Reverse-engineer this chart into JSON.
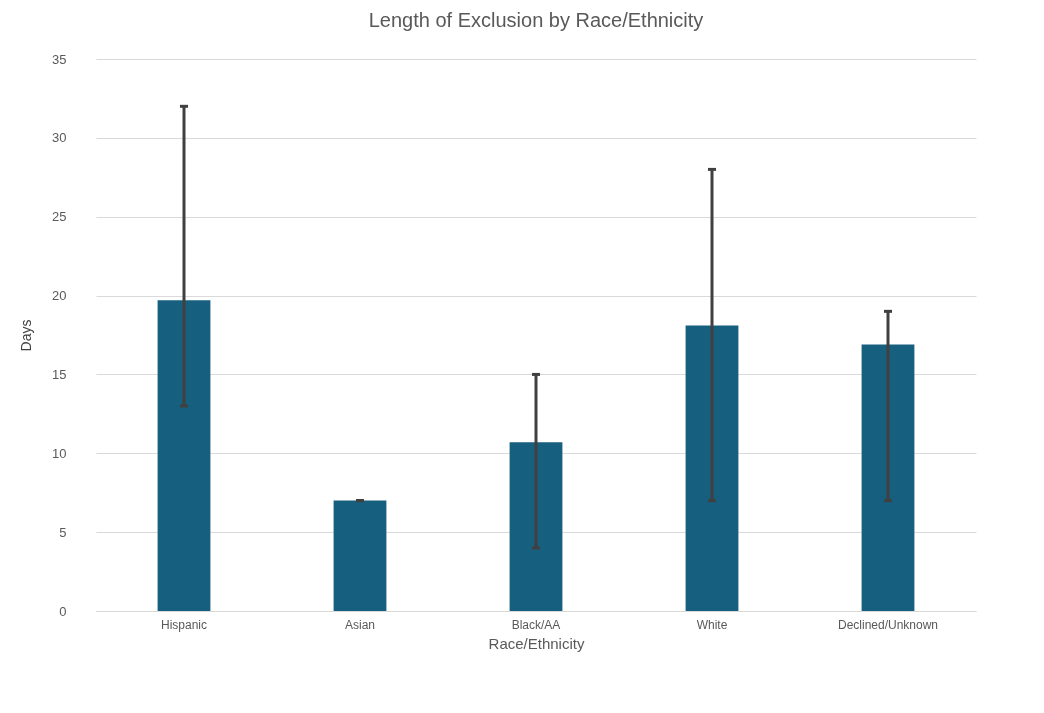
{
  "chart_data": {
    "type": "bar",
    "title": "Length of Exclusion by Race/Ethnicity",
    "xlabel": "Race/Ethnicity",
    "ylabel": "Days",
    "categories": [
      "Hispanic",
      "Asian",
      "Black/AA",
      "White",
      "Declined/Unknown"
    ],
    "values": [
      19.7,
      7,
      10.7,
      18.1,
      16.9
    ],
    "errors": [
      [
        13,
        32
      ],
      [
        7,
        7
      ],
      [
        4,
        15
      ],
      [
        7,
        28
      ],
      [
        7,
        19
      ]
    ],
    "color": "#175f7e",
    "ylim": [
      0,
      35
    ],
    "yticks": [
      0,
      5,
      10,
      15,
      20,
      25,
      30,
      35
    ],
    "grid": "y"
  }
}
